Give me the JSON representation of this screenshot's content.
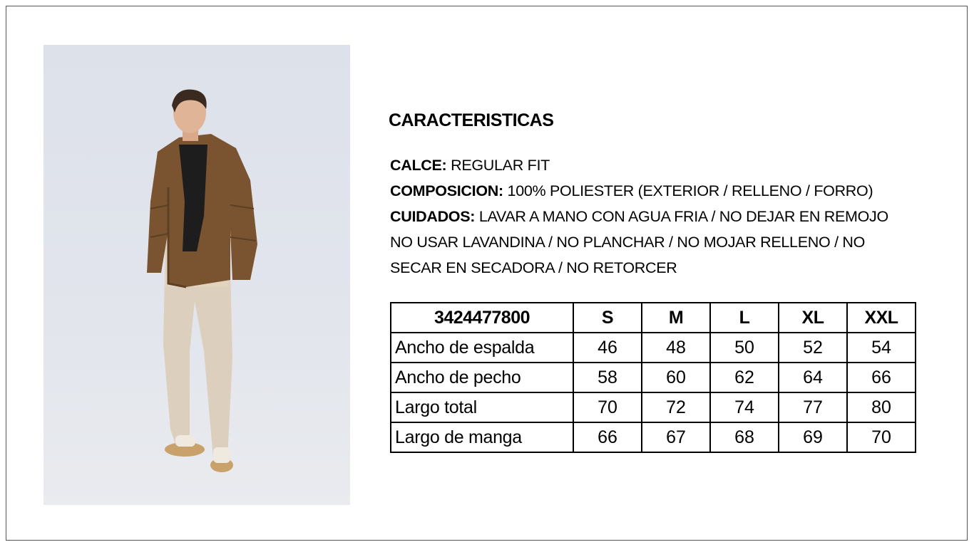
{
  "product_photo": {
    "alt": "Modelo con campera puffer marrón, bufanda negra y pantalón beige"
  },
  "section_title": "CARACTERISTICAS",
  "specs": [
    {
      "label": "CALCE:",
      "value": " REGULAR FIT"
    },
    {
      "label": "COMPOSICION:",
      "value": " 100% POLIESTER (EXTERIOR / RELLENO / FORRO)"
    },
    {
      "label": "CUIDADOS:",
      "value": " LAVAR A MANO CON AGUA FRIA / NO DEJAR EN REMOJO"
    }
  ],
  "care_continuation": [
    "NO USAR LAVANDINA / NO PLANCHAR / NO MOJAR RELLENO / NO",
    "SECAR EN SECADORA / NO RETORCER"
  ],
  "size_table": {
    "header": [
      "3424477800",
      "S",
      "M",
      "L",
      "XL",
      "XXL"
    ],
    "rows": [
      {
        "label": "Ancho de espalda",
        "values": [
          "46",
          "48",
          "50",
          "52",
          "54"
        ]
      },
      {
        "label": "Ancho de pecho",
        "values": [
          "58",
          "60",
          "62",
          "64",
          "66"
        ]
      },
      {
        "label": "Largo total",
        "values": [
          "70",
          "72",
          "74",
          "77",
          "80"
        ]
      },
      {
        "label": "Largo de manga",
        "values": [
          "66",
          "67",
          "68",
          "69",
          "70"
        ]
      }
    ]
  }
}
